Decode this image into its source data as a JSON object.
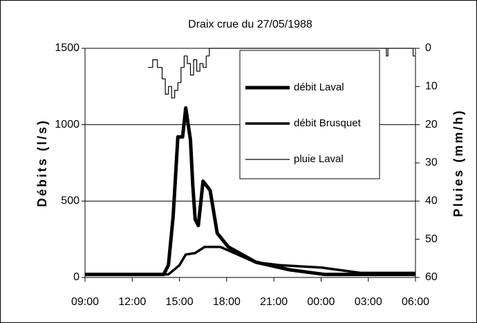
{
  "chart_data": {
    "type": "line",
    "title": "Draix crue du 27/05/1988",
    "y_label": "Débits (l/s)",
    "y2_label": "Pluies (mm/h)",
    "xlim": [
      9,
      30
    ],
    "xticks": [
      {
        "value": 9,
        "label": "09:00"
      },
      {
        "value": 12,
        "label": "12:00"
      },
      {
        "value": 15,
        "label": "15:00"
      },
      {
        "value": 18,
        "label": "18:00"
      },
      {
        "value": 21,
        "label": "21:00"
      },
      {
        "value": 24,
        "label": "00:00"
      },
      {
        "value": 27,
        "label": "03:00"
      },
      {
        "value": 30,
        "label": "06:00"
      }
    ],
    "ylim": [
      0,
      1500
    ],
    "yticks": [
      0,
      500,
      1000,
      1500
    ],
    "y2lim": [
      0,
      60
    ],
    "y2ticks": [
      0,
      10,
      20,
      30,
      40,
      50,
      60
    ],
    "y2_reversed": true,
    "grid": true,
    "legend": "upper right",
    "series": [
      {
        "name": "débit Laval",
        "color": "#000000",
        "line_width": 5,
        "x": [
          9,
          14.0,
          14.3,
          14.6,
          14.9,
          15.2,
          15.4,
          15.7,
          15.85,
          16.0,
          16.2,
          16.5,
          16.95,
          17.4,
          18.1,
          19.85,
          22.0,
          24.2,
          30
        ],
        "values": [
          20,
          20,
          80,
          400,
          920,
          920,
          1110,
          900,
          600,
          380,
          340,
          630,
          570,
          290,
          200,
          100,
          50,
          20,
          20
        ]
      },
      {
        "name": "débit Brusquet",
        "color": "#000000",
        "line_width": 3.5,
        "x": [
          9,
          14.3,
          15.0,
          15.4,
          16.0,
          16.6,
          17.6,
          18.7,
          19.8,
          21.4,
          24.0,
          26.5,
          30
        ],
        "values": [
          20,
          20,
          80,
          150,
          160,
          200,
          200,
          150,
          100,
          80,
          65,
          30,
          30
        ]
      },
      {
        "name": "pluie Laval",
        "color": "#000000",
        "line_width": 1.2,
        "axis": "y2",
        "step": true,
        "x": [
          13.0,
          13.3,
          13.6,
          13.9,
          14.1,
          14.3,
          14.5,
          14.7,
          14.9,
          15.1,
          15.3,
          15.5,
          15.7,
          15.9,
          16.1,
          16.3,
          16.5,
          16.7,
          16.9,
          28.15,
          28.25,
          29.85,
          30
        ],
        "values": [
          5,
          3,
          5,
          8,
          12,
          10,
          13,
          11,
          9,
          5,
          2,
          4,
          7,
          3,
          6,
          4,
          5,
          2,
          0,
          2,
          0,
          2,
          2
        ]
      }
    ]
  }
}
